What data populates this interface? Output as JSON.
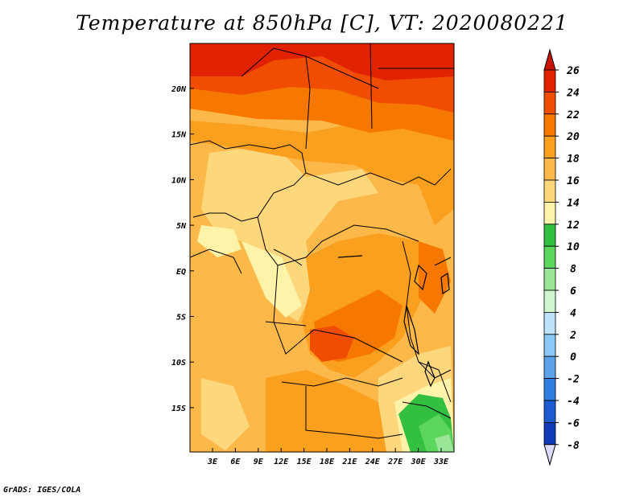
{
  "title": "Temperature at 850hPa [C], VT: 2020080221",
  "footer": "GrADS: IGES/COLA",
  "map": {
    "lat_labels": [
      "20N",
      "15N",
      "10N",
      "5N",
      "EQ",
      "5S",
      "10S",
      "15S"
    ],
    "lon_labels": [
      "3E",
      "6E",
      "9E",
      "12E",
      "15E",
      "18E",
      "21E",
      "24E",
      "27E",
      "30E",
      "33E"
    ]
  },
  "colorbar": {
    "labels": [
      "26",
      "24",
      "22",
      "20",
      "18",
      "16",
      "14",
      "12",
      "10",
      "8",
      "6",
      "4",
      "2",
      "0",
      "-2",
      "-4",
      "-6",
      "-8"
    ],
    "colors": [
      "#e12200",
      "#f04d00",
      "#f77800",
      "#fb9f1f",
      "#fcb94a",
      "#fdd77c",
      "#fef3a8",
      "#33bf40",
      "#5cd65c",
      "#99e699",
      "#cff5cf",
      "#bde3fb",
      "#8dc7f5",
      "#5ca3ec",
      "#2f7fe0",
      "#1d5bd0",
      "#123bb8",
      "#0a1a8a"
    ],
    "top_triangle_color": "#c81400",
    "bottom_triangle_color": "#dcdcfa"
  }
}
